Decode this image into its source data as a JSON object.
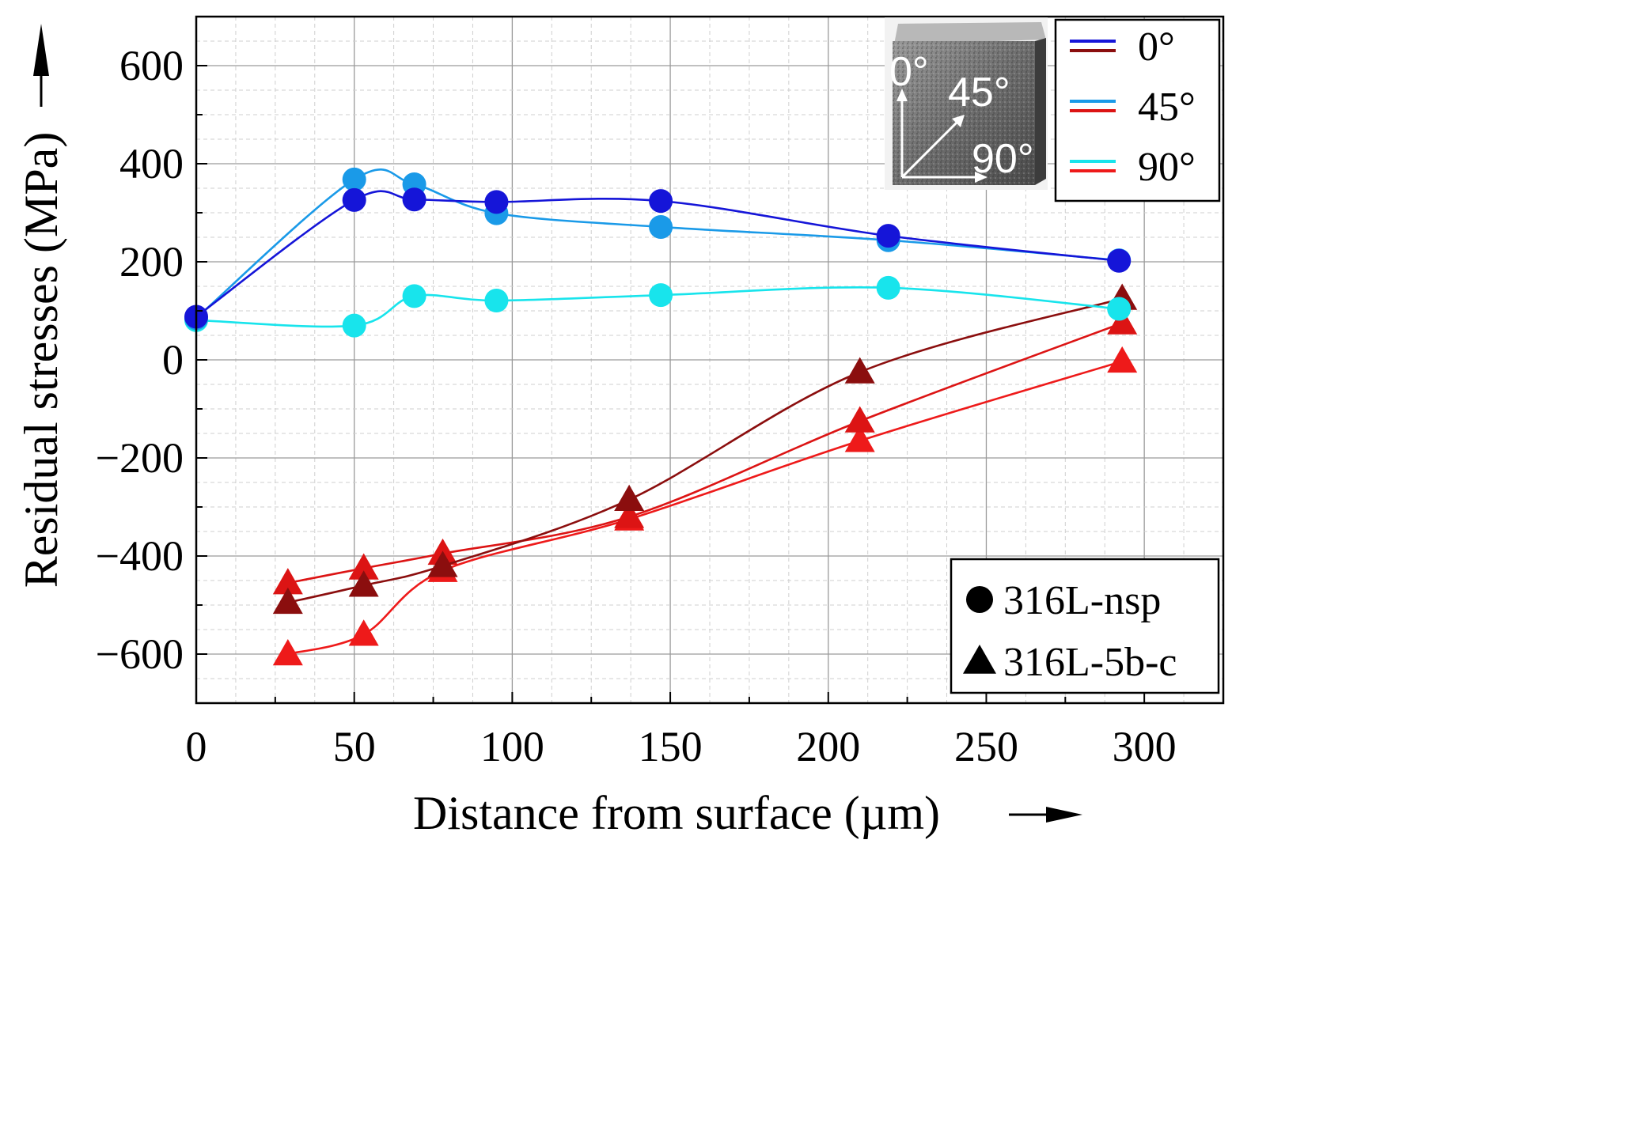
{
  "chart_data": {
    "type": "line",
    "xlabel": "Distance from surface (µm)",
    "ylabel": "Residual stresses (MPa)",
    "xlim": [
      0,
      325
    ],
    "ylim": [
      -700,
      700
    ],
    "x_ticks": [
      0,
      50,
      100,
      150,
      200,
      250,
      300
    ],
    "y_ticks": [
      -600,
      -400,
      -200,
      0,
      200,
      400,
      600
    ],
    "x_tick_labels": [
      "0",
      "50",
      "100",
      "150",
      "200",
      "250",
      "300"
    ],
    "y_tick_labels": [
      "−600",
      "−400",
      "−200",
      "0",
      "200",
      "400",
      "600"
    ],
    "grid": true,
    "series": [
      {
        "name": "316L-nsp 0°",
        "group": "316L-nsp",
        "angle": "0°",
        "marker": "circle",
        "color": "#1515d8",
        "x": [
          0,
          50,
          69,
          95,
          147,
          219,
          292
        ],
        "y": [
          88,
          326,
          327,
          322,
          324,
          253,
          202
        ]
      },
      {
        "name": "316L-nsp 45°",
        "group": "316L-nsp",
        "angle": "45°",
        "marker": "circle",
        "color": "#1a9ae8",
        "x": [
          0,
          50,
          69,
          95,
          147,
          219,
          292
        ],
        "y": [
          85,
          368,
          358,
          299,
          271,
          244,
          203
        ]
      },
      {
        "name": "316L-nsp 90°",
        "group": "316L-nsp",
        "angle": "90°",
        "marker": "circle",
        "color": "#18e4ec",
        "x": [
          0,
          50,
          69,
          95,
          147,
          219,
          292
        ],
        "y": [
          81,
          70,
          130,
          121,
          132,
          147,
          104
        ]
      },
      {
        "name": "316L-5b-c 0°",
        "group": "316L-5b-c",
        "angle": "0°",
        "marker": "triangle",
        "color": "#8b0e0e",
        "x": [
          29,
          53,
          78,
          137,
          210,
          293
        ],
        "y": [
          -495,
          -460,
          -420,
          -285,
          -25,
          125
        ]
      },
      {
        "name": "316L-5b-c 45°",
        "group": "316L-5b-c",
        "angle": "45°",
        "marker": "triangle",
        "color": "#dc1414",
        "x": [
          29,
          53,
          78,
          137,
          210,
          293
        ],
        "y": [
          -455,
          -425,
          -395,
          -320,
          -125,
          75
        ]
      },
      {
        "name": "316L-5b-c 90°",
        "group": "316L-5b-c",
        "angle": "90°",
        "marker": "triangle",
        "color": "#ee1a1a",
        "x": [
          29,
          53,
          78,
          137,
          210,
          293
        ],
        "y": [
          -600,
          -560,
          -430,
          -325,
          -165,
          -3
        ]
      }
    ],
    "legend_angles": [
      {
        "label": "0°",
        "colors": [
          "#1515d8",
          "#8b0e0e"
        ]
      },
      {
        "label": "45°",
        "colors": [
          "#1a9ae8",
          "#dc1414"
        ]
      },
      {
        "label": "90°",
        "colors": [
          "#18e4ec",
          "#ee1a1a"
        ]
      }
    ],
    "legend_markers": [
      {
        "label": "316L-nsp",
        "marker": "circle"
      },
      {
        "label": "316L-5b-c",
        "marker": "triangle"
      }
    ],
    "inset": {
      "labels": [
        "0°",
        "45°",
        "90°"
      ]
    }
  }
}
